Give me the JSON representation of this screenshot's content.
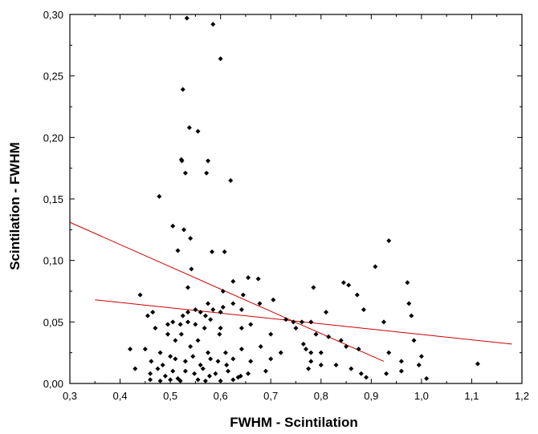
{
  "chart_data": {
    "type": "scatter",
    "xlabel": "FWHM - Scintilation",
    "ylabel": "Scintilation - FWHM",
    "xlim": [
      0.3,
      1.2
    ],
    "ylim": [
      0.0,
      0.3
    ],
    "xticks": [
      "0,3",
      "0,4",
      "0,5",
      "0,6",
      "0,7",
      "0,8",
      "0,9",
      "1,0",
      "1,1",
      "1,2"
    ],
    "yticks": [
      "0,00",
      "0,05",
      "0,10",
      "0,15",
      "0,20",
      "0,25",
      "0,30"
    ],
    "grid": false,
    "marker_color": "#000000",
    "line_color": "#cc0000",
    "points": [
      [
        0.533,
        0.297
      ],
      [
        0.585,
        0.292
      ],
      [
        0.6,
        0.264
      ],
      [
        0.525,
        0.239
      ],
      [
        0.538,
        0.208
      ],
      [
        0.555,
        0.205
      ],
      [
        0.522,
        0.182
      ],
      [
        0.523,
        0.181
      ],
      [
        0.53,
        0.171
      ],
      [
        0.575,
        0.181
      ],
      [
        0.572,
        0.171
      ],
      [
        0.62,
        0.165
      ],
      [
        0.478,
        0.152
      ],
      [
        0.505,
        0.128
      ],
      [
        0.527,
        0.125
      ],
      [
        0.54,
        0.118
      ],
      [
        0.515,
        0.108
      ],
      [
        0.583,
        0.107
      ],
      [
        0.935,
        0.116
      ],
      [
        0.608,
        0.107
      ],
      [
        0.908,
        0.095
      ],
      [
        0.542,
        0.093
      ],
      [
        0.655,
        0.086
      ],
      [
        0.625,
        0.083
      ],
      [
        0.675,
        0.085
      ],
      [
        0.845,
        0.082
      ],
      [
        0.855,
        0.08
      ],
      [
        0.972,
        0.082
      ],
      [
        0.535,
        0.078
      ],
      [
        0.785,
        0.078
      ],
      [
        0.605,
        0.075
      ],
      [
        0.645,
        0.072
      ],
      [
        0.872,
        0.072
      ],
      [
        0.44,
        0.072
      ],
      [
        0.705,
        0.068
      ],
      [
        0.975,
        0.065
      ],
      [
        0.625,
        0.065
      ],
      [
        0.575,
        0.065
      ],
      [
        0.678,
        0.065
      ],
      [
        0.585,
        0.06
      ],
      [
        0.55,
        0.06
      ],
      [
        0.605,
        0.062
      ],
      [
        0.642,
        0.06
      ],
      [
        0.56,
        0.058
      ],
      [
        0.57,
        0.055
      ],
      [
        0.535,
        0.058
      ],
      [
        0.525,
        0.055
      ],
      [
        0.58,
        0.052
      ],
      [
        0.6,
        0.058
      ],
      [
        0.81,
        0.058
      ],
      [
        0.885,
        0.06
      ],
      [
        0.98,
        0.055
      ],
      [
        0.78,
        0.05
      ],
      [
        0.762,
        0.05
      ],
      [
        0.745,
        0.05
      ],
      [
        0.73,
        0.052
      ],
      [
        0.455,
        0.055
      ],
      [
        0.465,
        0.058
      ],
      [
        0.47,
        0.045
      ],
      [
        0.495,
        0.048
      ],
      [
        0.505,
        0.05
      ],
      [
        0.52,
        0.048
      ],
      [
        0.535,
        0.05
      ],
      [
        0.55,
        0.048
      ],
      [
        0.568,
        0.045
      ],
      [
        0.6,
        0.045
      ],
      [
        0.642,
        0.045
      ],
      [
        0.66,
        0.048
      ],
      [
        0.7,
        0.04
      ],
      [
        0.75,
        0.045
      ],
      [
        0.79,
        0.04
      ],
      [
        0.815,
        0.038
      ],
      [
        0.84,
        0.035
      ],
      [
        0.925,
        0.05
      ],
      [
        0.985,
        0.035
      ],
      [
        0.45,
        0.028
      ],
      [
        0.48,
        0.025
      ],
      [
        0.495,
        0.04
      ],
      [
        0.51,
        0.035
      ],
      [
        0.522,
        0.04
      ],
      [
        0.54,
        0.03
      ],
      [
        0.555,
        0.035
      ],
      [
        0.575,
        0.025
      ],
      [
        0.598,
        0.04
      ],
      [
        0.61,
        0.025
      ],
      [
        0.642,
        0.028
      ],
      [
        0.68,
        0.03
      ],
      [
        0.72,
        0.025
      ],
      [
        0.765,
        0.032
      ],
      [
        0.77,
        0.028
      ],
      [
        0.78,
        0.025
      ],
      [
        0.8,
        0.025
      ],
      [
        0.85,
        0.03
      ],
      [
        0.875,
        0.028
      ],
      [
        0.935,
        0.025
      ],
      [
        1.0,
        0.022
      ],
      [
        0.42,
        0.028
      ],
      [
        0.462,
        0.018
      ],
      [
        0.485,
        0.015
      ],
      [
        0.5,
        0.022
      ],
      [
        0.51,
        0.02
      ],
      [
        0.53,
        0.018
      ],
      [
        0.545,
        0.022
      ],
      [
        0.56,
        0.015
      ],
      [
        0.58,
        0.02
      ],
      [
        0.595,
        0.018
      ],
      [
        0.612,
        0.015
      ],
      [
        0.625,
        0.02
      ],
      [
        0.66,
        0.018
      ],
      [
        0.7,
        0.02
      ],
      [
        0.78,
        0.018
      ],
      [
        0.8,
        0.015
      ],
      [
        0.83,
        0.015
      ],
      [
        0.86,
        0.012
      ],
      [
        0.96,
        0.018
      ],
      [
        0.995,
        0.015
      ],
      [
        1.112,
        0.016
      ],
      [
        0.43,
        0.012
      ],
      [
        0.46,
        0.008
      ],
      [
        0.475,
        0.012
      ],
      [
        0.49,
        0.006
      ],
      [
        0.505,
        0.01
      ],
      [
        0.515,
        0.004
      ],
      [
        0.53,
        0.01
      ],
      [
        0.548,
        0.008
      ],
      [
        0.565,
        0.012
      ],
      [
        0.578,
        0.006
      ],
      [
        0.59,
        0.008
      ],
      [
        0.615,
        0.01
      ],
      [
        0.635,
        0.005
      ],
      [
        0.655,
        0.008
      ],
      [
        0.69,
        0.01
      ],
      [
        0.775,
        0.012
      ],
      [
        0.88,
        0.008
      ],
      [
        0.89,
        0.005
      ],
      [
        0.93,
        0.008
      ],
      [
        0.96,
        0.01
      ],
      [
        1.01,
        0.004
      ],
      [
        0.46,
        0.003
      ],
      [
        0.48,
        0.002
      ],
      [
        0.5,
        0.003
      ],
      [
        0.52,
        0.002
      ],
      [
        0.555,
        0.003
      ],
      [
        0.57,
        0.002
      ],
      [
        0.6,
        0.002
      ],
      [
        0.625,
        0.003
      ],
      [
        0.64,
        0.006
      ]
    ],
    "fit_lines": [
      {
        "x": [
          0.3,
          0.925
        ],
        "y": [
          0.131,
          0.018
        ]
      },
      {
        "x": [
          0.35,
          1.18
        ],
        "y": [
          0.068,
          0.032
        ]
      }
    ]
  }
}
